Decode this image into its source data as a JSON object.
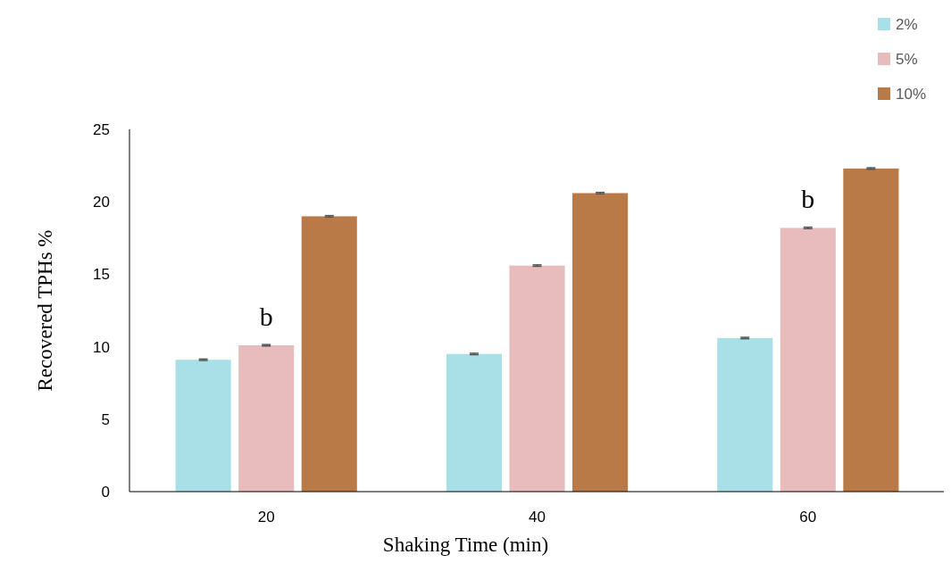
{
  "chart_data": {
    "type": "bar",
    "xlabel": "Shaking Time (min)",
    "ylabel": "Recovered TPHs %",
    "categories": [
      "20",
      "40",
      "60"
    ],
    "series": [
      {
        "name": "2%",
        "color": "#a9dfe6",
        "values": [
          9.1,
          9.5,
          10.6
        ],
        "errors": [
          0.05,
          0.05,
          0.05
        ]
      },
      {
        "name": "5%",
        "color": "#e8bcbc",
        "values": [
          10.1,
          15.6,
          18.2
        ],
        "errors": [
          0.05,
          0.05,
          0.05
        ]
      },
      {
        "name": "10%",
        "color": "#b97a48",
        "values": [
          19.0,
          20.6,
          22.3
        ],
        "errors": [
          0.05,
          0.05,
          0.05
        ]
      }
    ],
    "annotations": [
      {
        "text": "b",
        "x": "20",
        "y": 10.1
      },
      {
        "text": "b",
        "x": "60",
        "y": 18.2
      }
    ],
    "ylim": [
      0,
      25
    ],
    "yticks": [
      0,
      5,
      10,
      15,
      20,
      25
    ],
    "grid": false,
    "legend": "top right"
  }
}
